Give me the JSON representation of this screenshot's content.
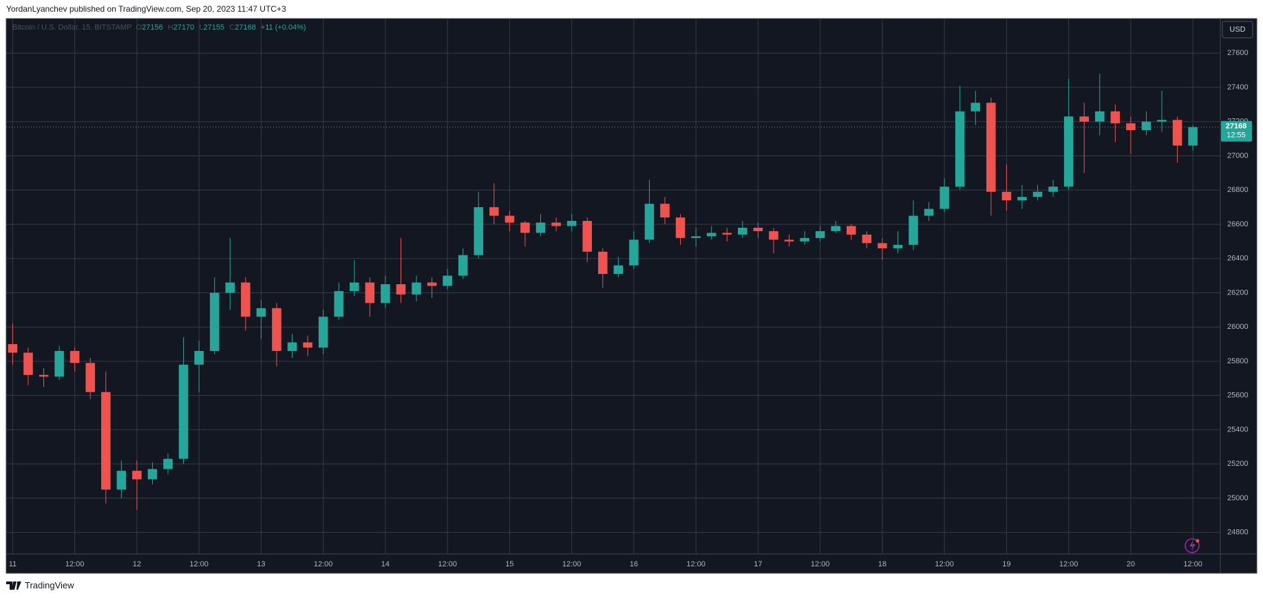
{
  "header": {
    "text": "YordanLyanchev published on TradingView.com, Sep 20, 2023 11:47 UTC+3"
  },
  "footer": {
    "brand": "TradingView"
  },
  "chart_data": {
    "type": "candlestick",
    "legend": {
      "symbol": "Bitcoin / U.S. Dollar, 15, BITSTAMP",
      "open_label": "O",
      "open": 27156,
      "high_label": "H",
      "high": 27170,
      "low_label": "L",
      "low": 27155,
      "close_label": "C",
      "close": 27168,
      "change": "+11 (+0.04%)"
    },
    "currency": "USD",
    "last_price": 27168,
    "countdown": "12:55",
    "up_color": "#26a69a",
    "down_color": "#ef5350",
    "grid": true,
    "x": [
      0,
      3,
      6,
      9,
      12,
      15,
      18,
      21,
      24,
      27,
      30,
      33,
      36,
      39,
      42,
      45,
      48,
      51,
      54,
      57,
      60,
      63,
      66,
      69,
      72,
      75,
      78,
      81,
      84,
      87,
      90,
      93,
      96,
      99,
      102,
      105,
      108,
      111,
      114,
      117,
      120,
      123,
      126,
      129,
      132,
      135,
      138,
      141,
      144,
      147,
      150,
      153,
      156,
      159,
      162,
      165,
      168,
      171,
      174,
      177,
      180,
      183,
      186,
      189,
      192,
      195,
      198,
      201,
      204,
      207,
      210,
      213,
      216,
      219,
      222,
      225,
      228
    ],
    "open": [
      25900,
      25850,
      25720,
      25710,
      25860,
      25790,
      25620,
      25050,
      25160,
      25110,
      25170,
      25230,
      25780,
      25860,
      26200,
      26260,
      26060,
      26110,
      25860,
      25910,
      25880,
      26060,
      26210,
      26260,
      26140,
      26250,
      26190,
      26260,
      26240,
      26300,
      26420,
      26700,
      26650,
      26610,
      26550,
      26610,
      26590,
      26620,
      26440,
      26310,
      26360,
      26510,
      26720,
      26640,
      26520,
      26530,
      26550,
      26540,
      26580,
      26560,
      26510,
      26500,
      26520,
      26560,
      26590,
      26540,
      26490,
      26460,
      26480,
      26650,
      26690,
      26820,
      27260,
      27310,
      26790,
      26740,
      26760,
      26790,
      26820,
      27230,
      27200,
      27260,
      27190,
      27150,
      27200,
      27210,
      27060
    ],
    "high": [
      26020,
      25880,
      25760,
      25890,
      25880,
      25820,
      25740,
      25220,
      25220,
      25210,
      25260,
      25940,
      25920,
      26290,
      26520,
      26290,
      26160,
      26140,
      25960,
      25950,
      26100,
      26260,
      26390,
      26290,
      26300,
      26520,
      26300,
      26290,
      26340,
      26460,
      26790,
      26840,
      26680,
      26620,
      26660,
      26640,
      26660,
      26640,
      26460,
      26410,
      26560,
      26860,
      26760,
      26660,
      26580,
      26590,
      26580,
      26620,
      26610,
      26580,
      26540,
      26560,
      26590,
      26620,
      26600,
      26560,
      26520,
      26560,
      26740,
      26730,
      26870,
      27410,
      27380,
      27340,
      26950,
      26830,
      26830,
      26860,
      27450,
      27310,
      27480,
      27300,
      27230,
      27260,
      27380,
      27230,
      27180
    ],
    "low": [
      25780,
      25660,
      25650,
      25690,
      25740,
      25580,
      24970,
      25000,
      24930,
      25080,
      25140,
      25200,
      25620,
      25840,
      26100,
      25980,
      25930,
      25770,
      25820,
      25830,
      25840,
      26040,
      26180,
      26060,
      26110,
      26140,
      26150,
      26170,
      26220,
      26280,
      26400,
      26600,
      26560,
      26470,
      26530,
      26560,
      26560,
      26380,
      26230,
      26290,
      26340,
      26490,
      26600,
      26480,
      26470,
      26510,
      26500,
      26520,
      26520,
      26430,
      26470,
      26480,
      26500,
      26550,
      26510,
      26460,
      26390,
      26430,
      26450,
      26620,
      26670,
      26800,
      27180,
      26650,
      26680,
      26690,
      26740,
      26760,
      26800,
      26900,
      27120,
      27080,
      27010,
      27120,
      27140,
      26960,
      27030
    ],
    "close": [
      25850,
      25720,
      25710,
      25860,
      25790,
      25620,
      25050,
      25160,
      25110,
      25170,
      25230,
      25780,
      25860,
      26200,
      26260,
      26060,
      26110,
      25860,
      25910,
      25880,
      26060,
      26210,
      26260,
      26140,
      26250,
      26190,
      26260,
      26240,
      26300,
      26420,
      26700,
      26650,
      26610,
      26550,
      26610,
      26590,
      26620,
      26440,
      26310,
      26360,
      26510,
      26720,
      26640,
      26520,
      26530,
      26550,
      26540,
      26580,
      26560,
      26510,
      26500,
      26520,
      26560,
      26590,
      26540,
      26490,
      26460,
      26480,
      26650,
      26690,
      26820,
      27260,
      27310,
      26790,
      26740,
      26760,
      26790,
      26820,
      27230,
      27200,
      27260,
      27190,
      27150,
      27200,
      27210,
      27060,
      27168
    ],
    "xlim": [
      -1.25,
      233.3
    ],
    "xticks": [
      {
        "value": 0,
        "label": "11"
      },
      {
        "value": 12,
        "label": "12:00"
      },
      {
        "value": 24,
        "label": "12"
      },
      {
        "value": 36,
        "label": "12:00"
      },
      {
        "value": 48,
        "label": "13"
      },
      {
        "value": 60,
        "label": "12:00"
      },
      {
        "value": 72,
        "label": "14"
      },
      {
        "value": 84,
        "label": "12:00"
      },
      {
        "value": 96,
        "label": "15"
      },
      {
        "value": 108,
        "label": "12:00"
      },
      {
        "value": 120,
        "label": "16"
      },
      {
        "value": 132,
        "label": "12:00"
      },
      {
        "value": 144,
        "label": "17"
      },
      {
        "value": 156,
        "label": "12:00"
      },
      {
        "value": 168,
        "label": "18"
      },
      {
        "value": 180,
        "label": "12:00"
      },
      {
        "value": 192,
        "label": "19"
      },
      {
        "value": 204,
        "label": "12:00"
      },
      {
        "value": 216,
        "label": "20"
      },
      {
        "value": 228,
        "label": "12:00"
      }
    ],
    "ylim": [
      24674,
      27802
    ],
    "yticks": [
      24800,
      25000,
      25200,
      25400,
      25600,
      25800,
      26000,
      26200,
      26400,
      26600,
      26800,
      27000,
      27200,
      27400,
      27600
    ]
  }
}
